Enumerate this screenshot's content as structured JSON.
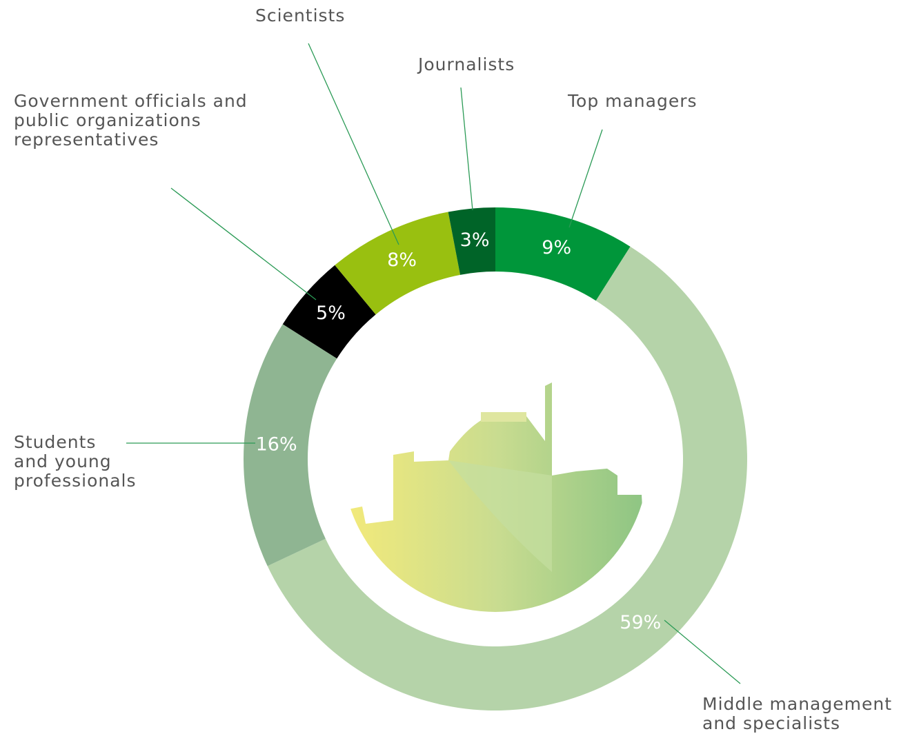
{
  "chart_data": {
    "type": "pie",
    "categories": [
      "Top managers",
      "Middle management and specialists",
      "Students and young professionals",
      "Government officials and public organizations representatives",
      "Scientists",
      "Journalists"
    ],
    "values": [
      9,
      59,
      16,
      5,
      8,
      3
    ],
    "value_labels": [
      "9%",
      "59%",
      "16%",
      "5%",
      "8%",
      "3%"
    ],
    "colors": [
      "#00963a",
      "#b5d3a9",
      "#8fb592",
      "#000000",
      "#99c010",
      "#006428"
    ]
  }
}
